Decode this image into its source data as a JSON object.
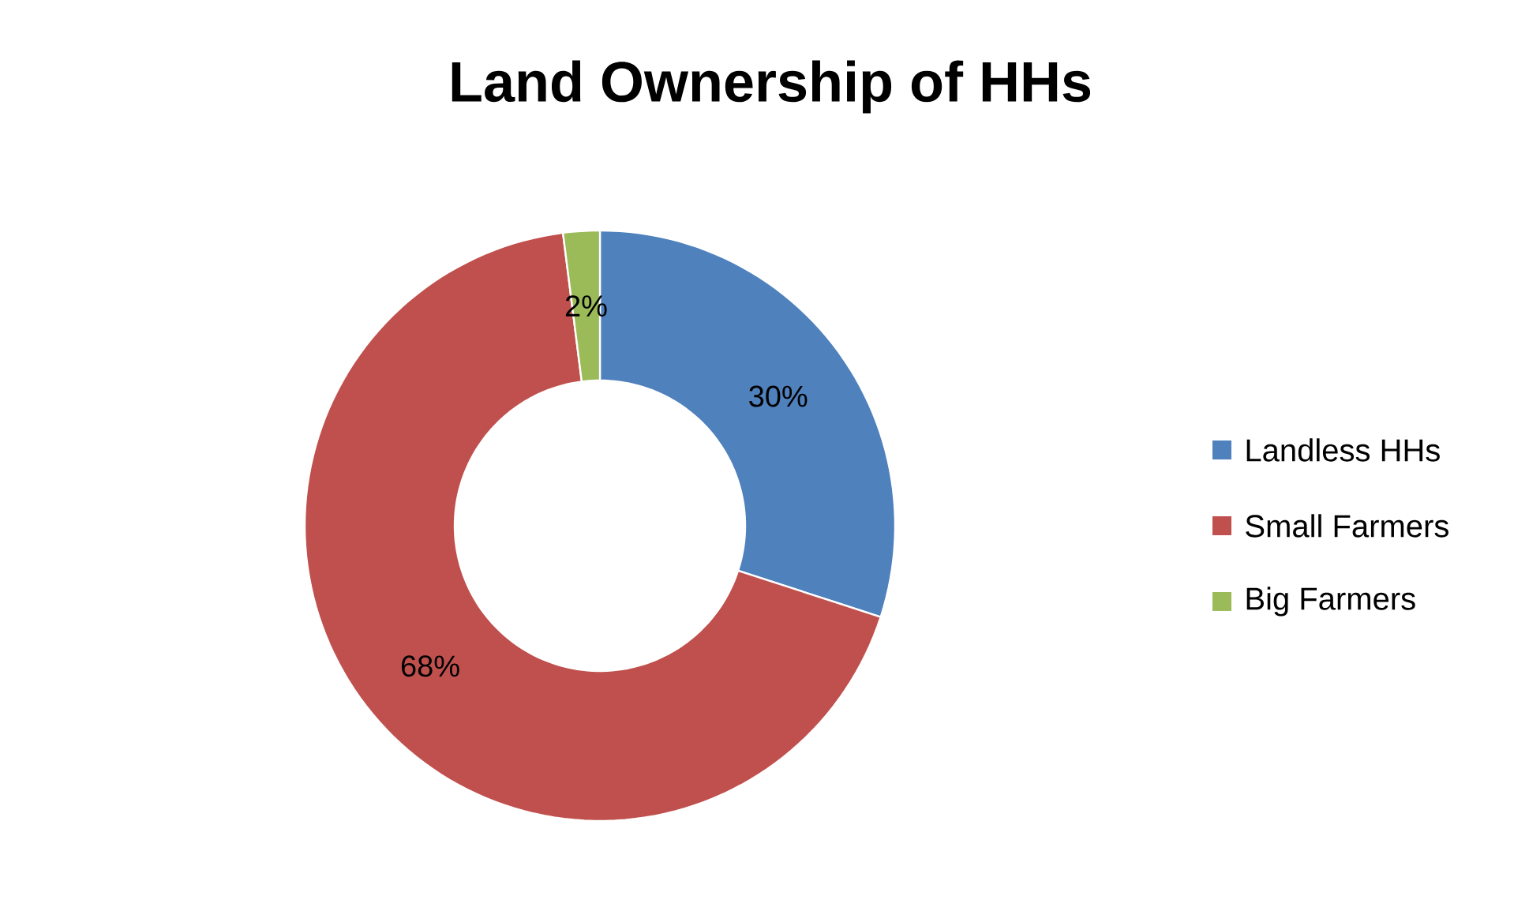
{
  "chart_data": {
    "type": "donut",
    "title": "Land Ownership of HHs",
    "categories": [
      "Landless HHs",
      "Small Farmers",
      "Big Farmers"
    ],
    "values": [
      30,
      68,
      2
    ],
    "colors": [
      "#4f81bd",
      "#c0504d",
      "#9bbb59"
    ],
    "value_labels": [
      "30%",
      "68%",
      "2%"
    ],
    "legend": "right"
  }
}
